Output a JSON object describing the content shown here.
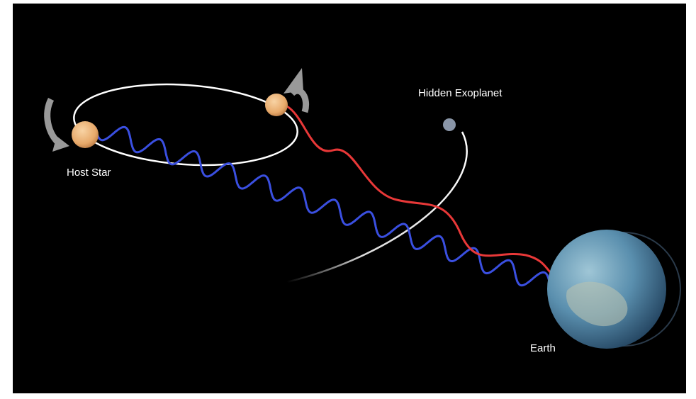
{
  "labels": {
    "hidden_exoplanet": "Hidden Exoplanet",
    "host_star": "Host Star",
    "earth": "Earth"
  }
}
